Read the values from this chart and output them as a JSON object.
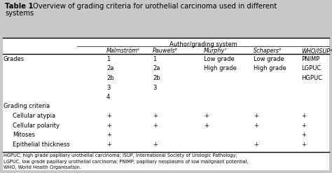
{
  "title_bold": "Table 1",
  "title_rest": "Overview of grading criteria for urothelial carcinoma used in different\nsystems",
  "bg_color": "#c8c8c8",
  "header_group": "Author/grading system",
  "col_headers": [
    "Malmström⁵",
    "Pauwels⁶",
    "Murphy⁷",
    "Schapers⁹",
    "WHO/ISUP¹⁰"
  ],
  "footnote": "HGPUC, high grade papillary urothelial carcinoma; ISUP, International Society of Urologic Pathology;\nLGPUC, low grade papillary urothelial carcinoma; PNIMP, papillary neoplasms of low malignant potential;\nWHO, World Health Organisation.",
  "rows": [
    [
      "Grades",
      "1",
      "1",
      "Low grade",
      "Low grade",
      "PNIMP"
    ],
    [
      "",
      "2a",
      "2a",
      "High grade",
      "High grade",
      "LGPUC"
    ],
    [
      "",
      "2b",
      "2b",
      "",
      "",
      "HGPUC"
    ],
    [
      "",
      "3",
      "3",
      "",
      "",
      ""
    ],
    [
      "",
      "4",
      "",
      "",
      "",
      ""
    ],
    [
      "Grading criteria",
      "",
      "",
      "",
      "",
      ""
    ],
    [
      "  Cellular atypia",
      "+",
      "+",
      "+",
      "+",
      "+"
    ],
    [
      "  Cellular polarity",
      "+",
      "+",
      "+",
      "+",
      "+"
    ],
    [
      "  Mitoses",
      "+",
      "",
      "",
      "",
      "+"
    ],
    [
      "  Epithelial thickness",
      "+",
      "+",
      "",
      "+",
      "+"
    ]
  ]
}
